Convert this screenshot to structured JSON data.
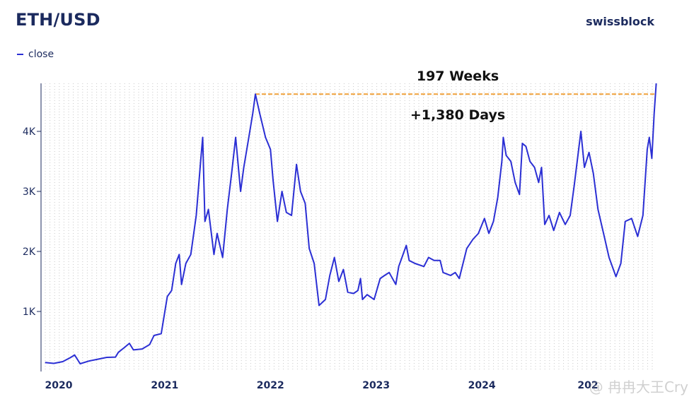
{
  "header": {
    "title": "ETH/USD",
    "brand": "swissblock"
  },
  "legend": {
    "label": "close"
  },
  "watermark": "@ 冉冉大王Cry",
  "colors": {
    "line": "#2b2fd4",
    "ath_line": "#f0a13a",
    "text": "#1b2a5e",
    "grid": "#c8c8c8"
  },
  "chart_data": {
    "type": "line",
    "series": [
      {
        "name": "close",
        "points": [
          [
            "2019-11-15",
            150
          ],
          [
            "2019-12-15",
            135
          ],
          [
            "2020-01-15",
            165
          ],
          [
            "2020-02-10",
            230
          ],
          [
            "2020-02-25",
            275
          ],
          [
            "2020-03-15",
            130
          ],
          [
            "2020-04-15",
            175
          ],
          [
            "2020-05-15",
            205
          ],
          [
            "2020-06-15",
            235
          ],
          [
            "2020-07-15",
            240
          ],
          [
            "2020-07-25",
            320
          ],
          [
            "2020-08-15",
            400
          ],
          [
            "2020-09-01",
            470
          ],
          [
            "2020-09-15",
            360
          ],
          [
            "2020-10-15",
            375
          ],
          [
            "2020-11-10",
            450
          ],
          [
            "2020-11-25",
            600
          ],
          [
            "2020-12-20",
            630
          ],
          [
            "2021-01-10",
            1250
          ],
          [
            "2021-01-25",
            1350
          ],
          [
            "2021-02-08",
            1800
          ],
          [
            "2021-02-20",
            1950
          ],
          [
            "2021-02-28",
            1450
          ],
          [
            "2021-03-15",
            1800
          ],
          [
            "2021-04-01",
            1950
          ],
          [
            "2021-04-20",
            2600
          ],
          [
            "2021-05-05",
            3500
          ],
          [
            "2021-05-12",
            3900
          ],
          [
            "2021-05-20",
            2500
          ],
          [
            "2021-06-01",
            2700
          ],
          [
            "2021-06-20",
            1950
          ],
          [
            "2021-07-01",
            2300
          ],
          [
            "2021-07-20",
            1900
          ],
          [
            "2021-08-05",
            2700
          ],
          [
            "2021-08-20",
            3300
          ],
          [
            "2021-09-03",
            3900
          ],
          [
            "2021-09-20",
            3000
          ],
          [
            "2021-10-01",
            3400
          ],
          [
            "2021-10-15",
            3800
          ],
          [
            "2021-11-01",
            4300
          ],
          [
            "2021-11-10",
            4620
          ],
          [
            "2021-11-25",
            4300
          ],
          [
            "2021-12-15",
            3900
          ],
          [
            "2022-01-01",
            3700
          ],
          [
            "2022-01-10",
            3200
          ],
          [
            "2022-01-25",
            2500
          ],
          [
            "2022-02-10",
            3000
          ],
          [
            "2022-02-25",
            2650
          ],
          [
            "2022-03-15",
            2600
          ],
          [
            "2022-04-01",
            3450
          ],
          [
            "2022-04-15",
            3000
          ],
          [
            "2022-05-01",
            2800
          ],
          [
            "2022-05-15",
            2050
          ],
          [
            "2022-06-01",
            1800
          ],
          [
            "2022-06-18",
            1100
          ],
          [
            "2022-07-10",
            1200
          ],
          [
            "2022-07-25",
            1600
          ],
          [
            "2022-08-10",
            1900
          ],
          [
            "2022-08-25",
            1500
          ],
          [
            "2022-09-10",
            1700
          ],
          [
            "2022-09-25",
            1320
          ],
          [
            "2022-10-15",
            1300
          ],
          [
            "2022-10-30",
            1350
          ],
          [
            "2022-11-08",
            1550
          ],
          [
            "2022-11-15",
            1200
          ],
          [
            "2022-12-01",
            1280
          ],
          [
            "2022-12-25",
            1200
          ],
          [
            "2023-01-15",
            1550
          ],
          [
            "2023-01-30",
            1600
          ],
          [
            "2023-02-15",
            1650
          ],
          [
            "2023-03-10",
            1450
          ],
          [
            "2023-03-20",
            1750
          ],
          [
            "2023-04-15",
            2100
          ],
          [
            "2023-04-25",
            1850
          ],
          [
            "2023-05-15",
            1800
          ],
          [
            "2023-06-15",
            1750
          ],
          [
            "2023-07-01",
            1900
          ],
          [
            "2023-07-20",
            1850
          ],
          [
            "2023-08-10",
            1850
          ],
          [
            "2023-08-20",
            1650
          ],
          [
            "2023-09-15",
            1600
          ],
          [
            "2023-10-01",
            1650
          ],
          [
            "2023-10-15",
            1550
          ],
          [
            "2023-11-10",
            2050
          ],
          [
            "2023-12-01",
            2200
          ],
          [
            "2023-12-20",
            2300
          ],
          [
            "2024-01-10",
            2550
          ],
          [
            "2024-01-25",
            2300
          ],
          [
            "2024-02-10",
            2500
          ],
          [
            "2024-02-25",
            2900
          ],
          [
            "2024-03-10",
            3500
          ],
          [
            "2024-03-15",
            3900
          ],
          [
            "2024-03-25",
            3600
          ],
          [
            "2024-04-10",
            3500
          ],
          [
            "2024-04-25",
            3150
          ],
          [
            "2024-05-10",
            2950
          ],
          [
            "2024-05-20",
            3800
          ],
          [
            "2024-06-01",
            3750
          ],
          [
            "2024-06-15",
            3500
          ],
          [
            "2024-07-01",
            3400
          ],
          [
            "2024-07-15",
            3150
          ],
          [
            "2024-07-25",
            3400
          ],
          [
            "2024-08-05",
            2450
          ],
          [
            "2024-08-20",
            2600
          ],
          [
            "2024-09-05",
            2350
          ],
          [
            "2024-09-25",
            2650
          ],
          [
            "2024-10-15",
            2450
          ],
          [
            "2024-11-01",
            2600
          ],
          [
            "2024-11-15",
            3100
          ],
          [
            "2024-12-08",
            4000
          ],
          [
            "2024-12-20",
            3400
          ],
          [
            "2025-01-05",
            3650
          ],
          [
            "2025-01-20",
            3300
          ],
          [
            "2025-02-05",
            2700
          ],
          [
            "2025-03-01",
            2200
          ],
          [
            "2025-03-15",
            1900
          ],
          [
            "2025-04-08",
            1580
          ],
          [
            "2025-04-25",
            1800
          ],
          [
            "2025-05-10",
            2500
          ],
          [
            "2025-06-01",
            2550
          ],
          [
            "2025-06-22",
            2250
          ],
          [
            "2025-07-10",
            2600
          ],
          [
            "2025-07-25",
            3700
          ],
          [
            "2025-08-01",
            3900
          ],
          [
            "2025-08-10",
            3550
          ],
          [
            "2025-08-18",
            4300
          ],
          [
            "2025-08-25",
            4800
          ]
        ]
      }
    ],
    "reference_line": {
      "from": "2021-11-10",
      "to": "2025-08-25",
      "value": 4620
    },
    "annotations": [
      "197 Weeks",
      "+1,380 Days"
    ],
    "x_ticks": [
      "2020",
      "2021",
      "2022",
      "2023",
      "2024",
      "202"
    ],
    "y_ticks": [
      {
        "value": 1000,
        "label": "1K"
      },
      {
        "value": 2000,
        "label": "2K"
      },
      {
        "value": 3000,
        "label": "3K"
      },
      {
        "value": 4000,
        "label": "4K"
      }
    ],
    "xlim": [
      "2019-11-01",
      "2025-08-26"
    ],
    "ylim": [
      0,
      4800
    ],
    "grid": "vertical dotted",
    "legend_position": "top-left"
  }
}
